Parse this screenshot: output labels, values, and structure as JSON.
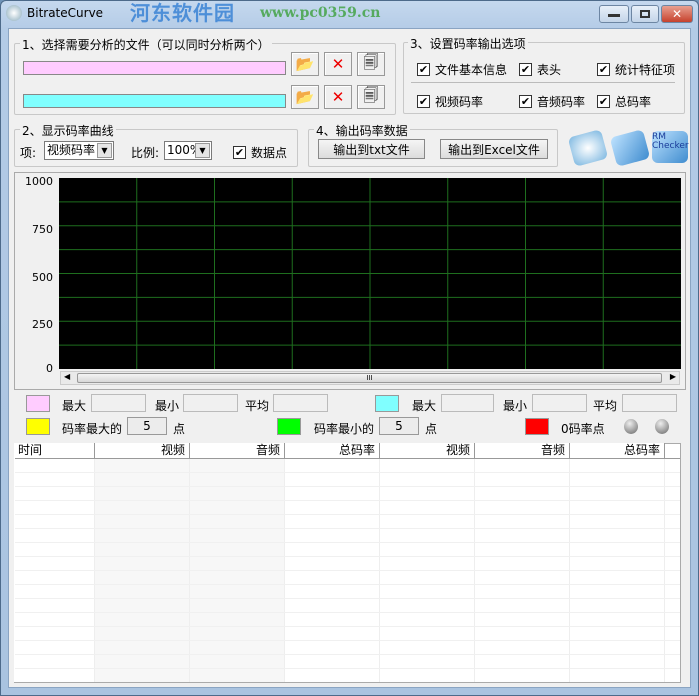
{
  "window": {
    "title": "BitrateCurve",
    "watermark": "河东软件园",
    "watermark_url": "www.pc0359.cn"
  },
  "group1": {
    "legend": "1、选择需要分析的文件（可以同时分析两个）",
    "file1_color": "#ffccff",
    "file2_color": "#80ffff"
  },
  "group3": {
    "legend": "3、设置码率输出选项",
    "options": [
      {
        "label": "文件基本信息",
        "checked": true
      },
      {
        "label": "表头",
        "checked": true
      },
      {
        "label": "统计特征项",
        "checked": true
      },
      {
        "label": "视频码率",
        "checked": true
      },
      {
        "label": "音频码率",
        "checked": true
      },
      {
        "label": "总码率",
        "checked": true
      }
    ]
  },
  "group2": {
    "legend": "2、显示码率曲线",
    "item_label": "项:",
    "item_value": "视频码率",
    "scale_label": "比例:",
    "scale_value": "100%",
    "datapoints_label": "数据点",
    "datapoints_checked": true
  },
  "group4": {
    "legend": "4、输出码率数据",
    "txt_button": "输出到txt文件",
    "excel_button": "输出到Excel文件"
  },
  "tools": {
    "rm_checker": "RM Checker"
  },
  "chart_data": {
    "type": "line",
    "yticks": [
      "1000",
      "750",
      "500",
      "250",
      "0"
    ],
    "ylim": [
      0,
      1000
    ],
    "grid": true,
    "background": "#000000",
    "grid_color": "#1e6e1e",
    "series": []
  },
  "scrollbar": {
    "thumb": "III"
  },
  "stats": {
    "max": "最大",
    "min": "最小",
    "avg": "平均",
    "file1_color": "#ffccff",
    "file2_color": "#80ffff"
  },
  "markers": {
    "max_label": "码率最大的",
    "max_count": "5",
    "min_label": "码率最小的",
    "min_count": "5",
    "unit": "点",
    "zero_label": "0码率点",
    "max_color": "#ffff00",
    "min_color": "#00ff00",
    "zero_color": "#ff0000"
  },
  "table": {
    "headers": [
      "时间",
      "视频",
      "音频",
      "总码率",
      "视频",
      "音频",
      "总码率"
    ]
  }
}
